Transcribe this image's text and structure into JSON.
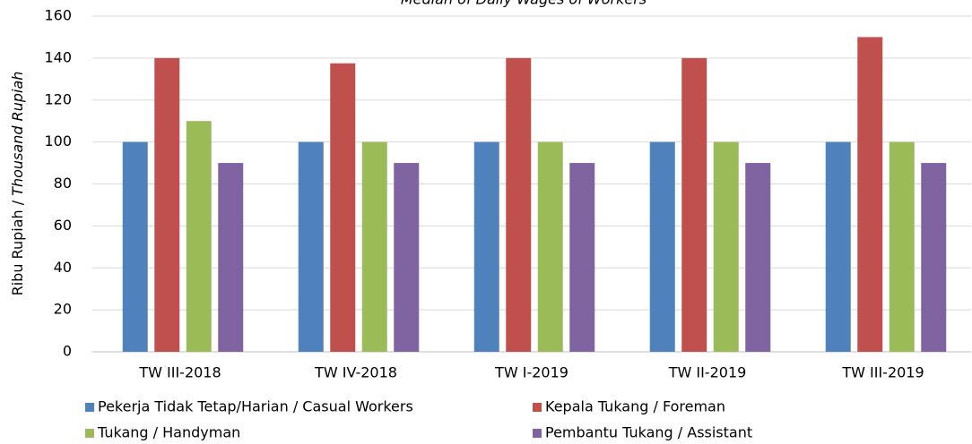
{
  "chart_data": {
    "type": "bar",
    "title": "Median of Daily Wages of Workers",
    "y_label": [
      "Ribu Rupiah /",
      "Thousand Rupiah"
    ],
    "categories": [
      "TW III-2018",
      "TW IV-2018",
      "TW I-2019",
      "TW II-2019",
      "TW III-2019"
    ],
    "series": [
      {
        "name": "Pekerja Tidak Tetap/Harian / Casual Workers",
        "color": "#4f81bd",
        "values": [
          100,
          100,
          100,
          100,
          100
        ]
      },
      {
        "name": "Kepala Tukang / Foreman",
        "color": "#c0504d",
        "values": [
          140,
          137.5,
          140,
          140,
          150
        ]
      },
      {
        "name": "Tukang / Handyman",
        "color": "#9bbb59",
        "values": [
          110,
          100,
          100,
          100,
          100
        ]
      },
      {
        "name": "Pembantu Tukang / Assistant",
        "color": "#8064a2",
        "values": [
          90,
          90,
          90,
          90,
          90
        ]
      }
    ],
    "ylim": [
      0,
      160
    ],
    "yticks": [
      0,
      20,
      40,
      60,
      80,
      100,
      120,
      140,
      160
    ],
    "grid": true,
    "legend": "bottom"
  }
}
